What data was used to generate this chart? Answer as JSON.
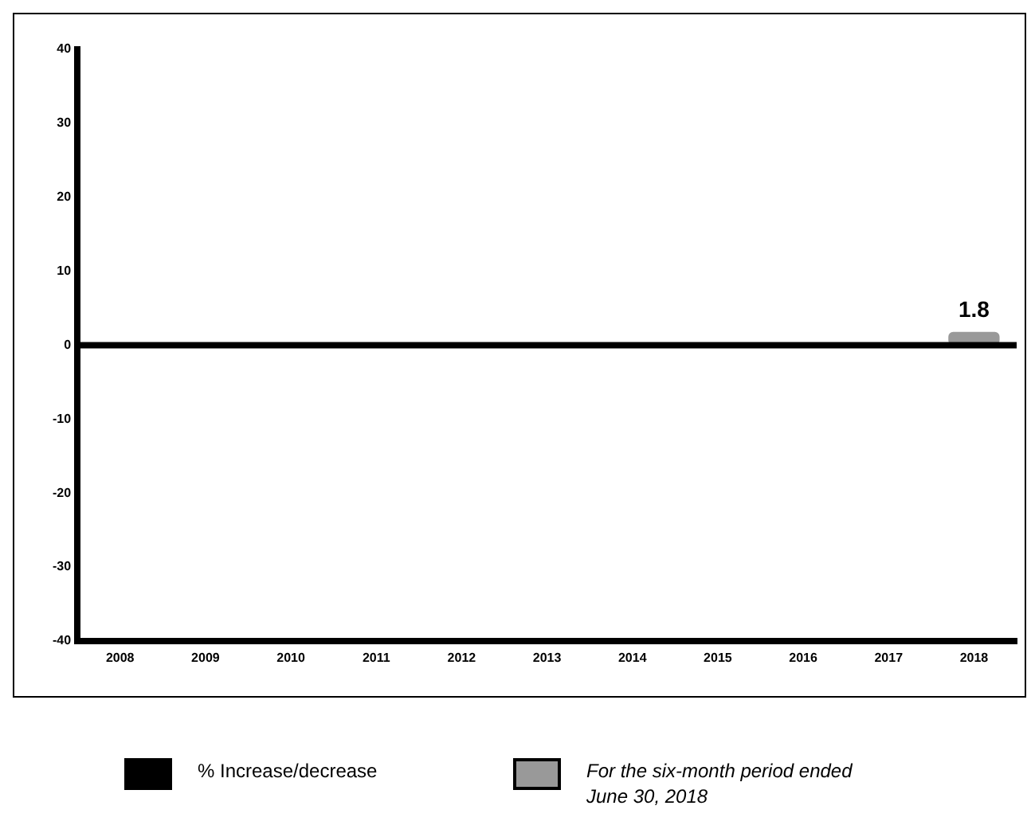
{
  "chart_data": {
    "type": "bar",
    "categories": [
      "2008",
      "2009",
      "2010",
      "2011",
      "2012",
      "2013",
      "2014",
      "2015",
      "2016",
      "2017",
      "2018"
    ],
    "series": [
      {
        "name": "% Increase/decrease",
        "color": "#000000",
        "values": [
          0,
          0,
          0,
          0,
          0,
          0,
          0,
          0,
          0,
          0,
          null
        ]
      },
      {
        "name": "For the six-month period ended June 30, 2018",
        "color": "#999999",
        "values": [
          null,
          null,
          null,
          null,
          null,
          null,
          null,
          null,
          null,
          null,
          1.8
        ],
        "value_labels": [
          null,
          null,
          null,
          null,
          null,
          null,
          null,
          null,
          null,
          null,
          "1.8"
        ]
      }
    ],
    "ylim": [
      -40,
      40
    ],
    "yticks": [
      -40,
      -30,
      -20,
      -10,
      0,
      10,
      20,
      30,
      40
    ],
    "grid": false,
    "ref_lines": [
      {
        "axis": "y",
        "value": 0,
        "color": "#000000"
      }
    ],
    "legend": "bottom",
    "stacked": true
  }
}
